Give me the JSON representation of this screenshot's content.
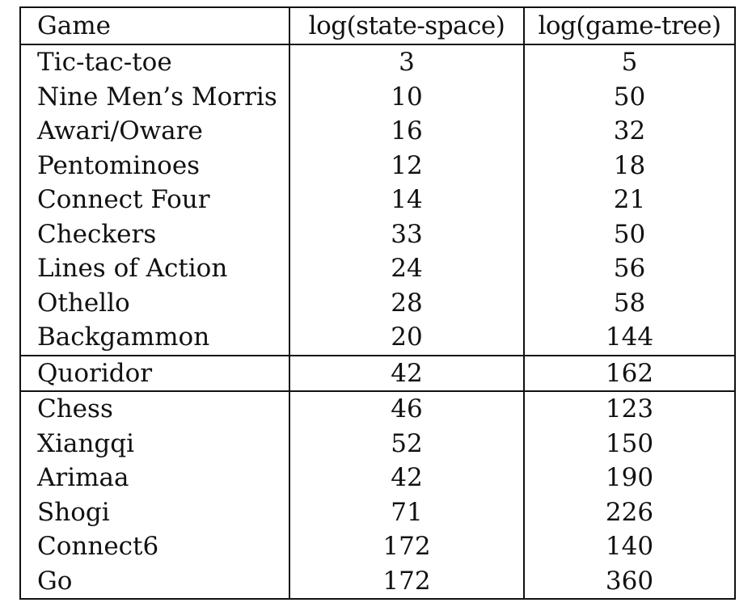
{
  "table": {
    "headers": [
      "Game",
      "log(state-space)",
      "log(game-tree)"
    ],
    "group1": [
      {
        "game": "Tic-tac-toe",
        "state_space": "3",
        "game_tree": "5"
      },
      {
        "game": "Nine Men’s Morris",
        "state_space": "10",
        "game_tree": "50"
      },
      {
        "game": "Awari/Oware",
        "state_space": "16",
        "game_tree": "32"
      },
      {
        "game": "Pentominoes",
        "state_space": "12",
        "game_tree": "18"
      },
      {
        "game": "Connect Four",
        "state_space": "14",
        "game_tree": "21"
      },
      {
        "game": "Checkers",
        "state_space": "33",
        "game_tree": "50"
      },
      {
        "game": "Lines of Action",
        "state_space": "24",
        "game_tree": "56"
      },
      {
        "game": "Othello",
        "state_space": "28",
        "game_tree": "58"
      },
      {
        "game": "Backgammon",
        "state_space": "20",
        "game_tree": "144"
      }
    ],
    "group2": [
      {
        "game": "Quoridor",
        "state_space": "42",
        "game_tree": "162"
      }
    ],
    "group3": [
      {
        "game": "Chess",
        "state_space": "46",
        "game_tree": "123"
      },
      {
        "game": "Xiangqi",
        "state_space": "52",
        "game_tree": "150"
      },
      {
        "game": "Arimaa",
        "state_space": "42",
        "game_tree": "190"
      },
      {
        "game": "Shogi",
        "state_space": "71",
        "game_tree": "226"
      },
      {
        "game": "Connect6",
        "state_space": "172",
        "game_tree": "140"
      },
      {
        "game": "Go",
        "state_space": "172",
        "game_tree": "360"
      }
    ]
  }
}
